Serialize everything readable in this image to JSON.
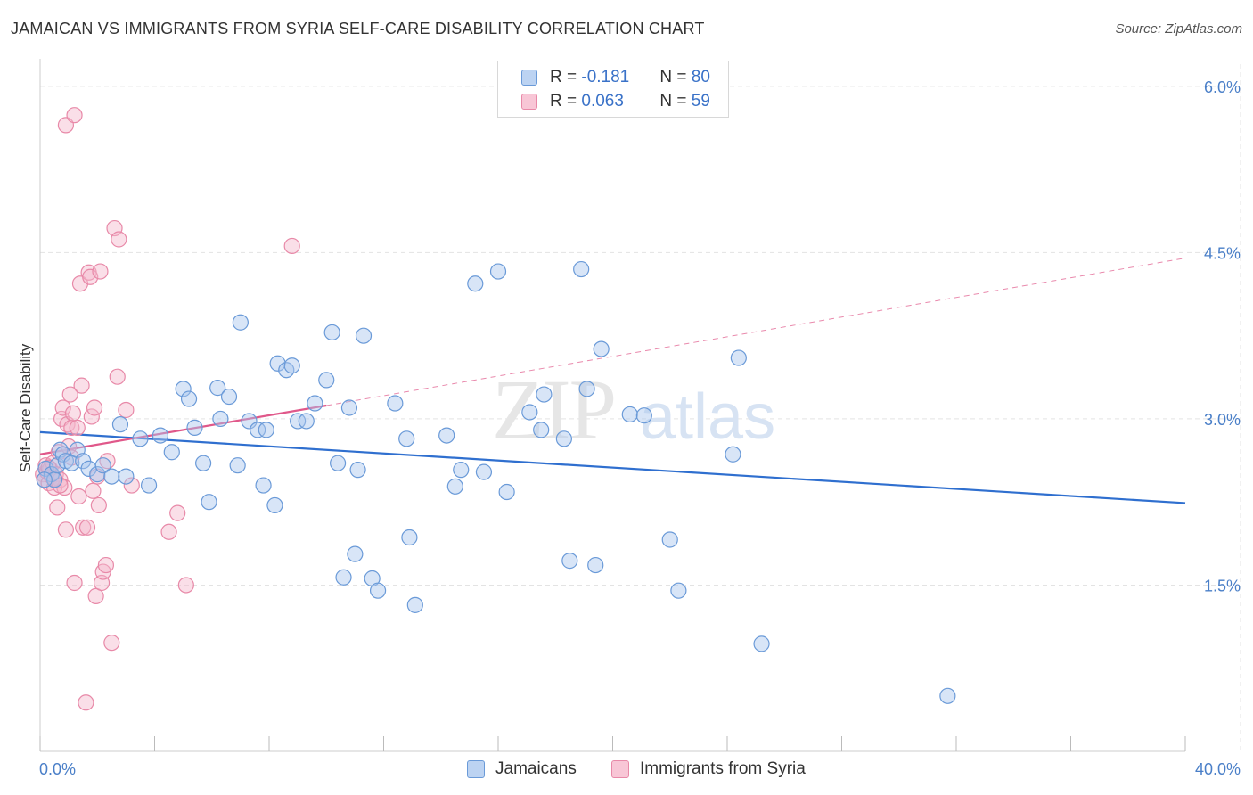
{
  "header": {
    "title": "JAMAICAN VS IMMIGRANTS FROM SYRIA SELF-CARE DISABILITY CORRELATION CHART",
    "source": "Source: ZipAtlas.com"
  },
  "watermark": {
    "zip": "ZIP",
    "atlas": "atlas"
  },
  "legend": {
    "rows": [
      {
        "r_label": "R = ",
        "r_value": "-0.181",
        "n_label": "N = ",
        "n_value": "80"
      },
      {
        "r_label": "R = ",
        "r_value": "0.063",
        "n_label": "N = ",
        "n_value": "59"
      }
    ]
  },
  "bottom_legend": {
    "jamaicans": "Jamaicans",
    "syria": "Immigrants from Syria"
  },
  "colors": {
    "blue_fill": "#a9c6ee",
    "blue_stroke": "#6a9ad8",
    "blue_line": "#2f6fcf",
    "pink_fill": "#f5b8cb",
    "pink_stroke": "#e889a8",
    "pink_line": "#e0588a",
    "grid": "#e3e3e3",
    "tick_text": "#4a7fc8"
  },
  "chart_data": {
    "type": "scatter",
    "title": "JAMAICAN VS IMMIGRANTS FROM SYRIA SELF-CARE DISABILITY CORRELATION CHART",
    "xlabel": "",
    "ylabel": "Self-Care Disability",
    "xlim": [
      0,
      40
    ],
    "ylim": [
      0,
      6.2
    ],
    "x_tick_labels": [
      "0.0%",
      "40.0%"
    ],
    "y_ticks": [
      1.5,
      3.0,
      4.5,
      6.0
    ],
    "y_tick_labels": [
      "1.5%",
      "3.0%",
      "4.5%",
      "6.0%"
    ],
    "grid": true,
    "series": [
      {
        "name": "Jamaicans",
        "r": -0.181,
        "n": 80,
        "trend": {
          "x": [
            0,
            40
          ],
          "y": [
            2.88,
            2.24
          ]
        },
        "points": [
          [
            0.2,
            2.55
          ],
          [
            0.4,
            2.5
          ],
          [
            0.5,
            2.45
          ],
          [
            0.6,
            2.58
          ],
          [
            0.7,
            2.72
          ],
          [
            0.8,
            2.68
          ],
          [
            0.9,
            2.62
          ],
          [
            1.1,
            2.6
          ],
          [
            1.3,
            2.72
          ],
          [
            1.5,
            2.62
          ],
          [
            1.7,
            2.55
          ],
          [
            2.0,
            2.5
          ],
          [
            2.2,
            2.58
          ],
          [
            2.5,
            2.48
          ],
          [
            2.8,
            2.95
          ],
          [
            3.0,
            2.48
          ],
          [
            3.5,
            2.82
          ],
          [
            3.8,
            2.4
          ],
          [
            4.2,
            2.85
          ],
          [
            4.6,
            2.7
          ],
          [
            5.0,
            3.27
          ],
          [
            5.2,
            3.18
          ],
          [
            5.4,
            2.92
          ],
          [
            5.7,
            2.6
          ],
          [
            5.9,
            2.25
          ],
          [
            6.2,
            3.28
          ],
          [
            6.3,
            3.0
          ],
          [
            6.6,
            3.2
          ],
          [
            6.9,
            2.58
          ],
          [
            7.0,
            3.87
          ],
          [
            7.3,
            2.98
          ],
          [
            7.6,
            2.9
          ],
          [
            7.8,
            2.4
          ],
          [
            7.9,
            2.9
          ],
          [
            8.2,
            2.22
          ],
          [
            8.3,
            3.5
          ],
          [
            8.6,
            3.44
          ],
          [
            8.8,
            3.48
          ],
          [
            9.0,
            2.98
          ],
          [
            9.3,
            2.98
          ],
          [
            9.6,
            3.14
          ],
          [
            10.0,
            3.35
          ],
          [
            10.2,
            3.78
          ],
          [
            10.4,
            2.6
          ],
          [
            10.6,
            1.57
          ],
          [
            10.8,
            3.1
          ],
          [
            11.0,
            1.78
          ],
          [
            11.1,
            2.54
          ],
          [
            11.3,
            3.75
          ],
          [
            11.6,
            1.56
          ],
          [
            11.8,
            1.45
          ],
          [
            12.4,
            3.14
          ],
          [
            12.8,
            2.82
          ],
          [
            12.9,
            1.93
          ],
          [
            13.1,
            1.32
          ],
          [
            14.2,
            2.85
          ],
          [
            14.5,
            2.39
          ],
          [
            14.7,
            2.54
          ],
          [
            15.2,
            4.22
          ],
          [
            15.5,
            2.52
          ],
          [
            16.0,
            4.33
          ],
          [
            16.3,
            2.34
          ],
          [
            17.1,
            3.06
          ],
          [
            17.5,
            2.9
          ],
          [
            17.6,
            3.22
          ],
          [
            18.3,
            2.82
          ],
          [
            18.5,
            1.72
          ],
          [
            18.9,
            4.35
          ],
          [
            19.1,
            3.27
          ],
          [
            19.4,
            1.68
          ],
          [
            19.6,
            3.63
          ],
          [
            20.6,
            3.04
          ],
          [
            21.1,
            3.03
          ],
          [
            22.0,
            1.91
          ],
          [
            22.3,
            1.45
          ],
          [
            24.2,
            2.68
          ],
          [
            24.4,
            3.55
          ],
          [
            25.2,
            0.97
          ],
          [
            31.7,
            0.5
          ],
          [
            0.15,
            2.45
          ]
        ]
      },
      {
        "name": "Immigrants from Syria",
        "r": 0.063,
        "n": 59,
        "trend": {
          "x": [
            0,
            10
          ],
          "y": [
            2.68,
            3.12
          ]
        },
        "trend_extension": {
          "x": [
            10,
            40
          ],
          "y": [
            3.12,
            4.45
          ]
        },
        "points": [
          [
            0.1,
            2.5
          ],
          [
            0.15,
            2.45
          ],
          [
            0.2,
            2.58
          ],
          [
            0.25,
            2.52
          ],
          [
            0.3,
            2.42
          ],
          [
            0.35,
            2.55
          ],
          [
            0.4,
            2.48
          ],
          [
            0.45,
            2.6
          ],
          [
            0.5,
            2.38
          ],
          [
            0.55,
            2.5
          ],
          [
            0.6,
            2.2
          ],
          [
            0.65,
            2.7
          ],
          [
            0.7,
            2.45
          ],
          [
            0.75,
            3.0
          ],
          [
            0.8,
            3.1
          ],
          [
            0.85,
            2.38
          ],
          [
            0.9,
            2.0
          ],
          [
            0.95,
            2.95
          ],
          [
            1.0,
            2.75
          ],
          [
            1.05,
            3.22
          ],
          [
            1.1,
            2.92
          ],
          [
            1.15,
            3.05
          ],
          [
            1.2,
            1.52
          ],
          [
            1.3,
            2.92
          ],
          [
            1.35,
            2.3
          ],
          [
            1.4,
            4.22
          ],
          [
            1.45,
            3.3
          ],
          [
            1.5,
            2.02
          ],
          [
            1.6,
            0.44
          ],
          [
            1.65,
            2.02
          ],
          [
            1.7,
            4.32
          ],
          [
            1.75,
            4.28
          ],
          [
            1.8,
            3.02
          ],
          [
            1.85,
            2.35
          ],
          [
            1.9,
            3.1
          ],
          [
            1.95,
            1.4
          ],
          [
            2.0,
            2.48
          ],
          [
            2.05,
            2.22
          ],
          [
            2.1,
            4.33
          ],
          [
            2.15,
            1.52
          ],
          [
            2.2,
            1.62
          ],
          [
            2.3,
            1.68
          ],
          [
            2.35,
            2.62
          ],
          [
            2.5,
            0.98
          ],
          [
            2.6,
            4.72
          ],
          [
            2.7,
            3.38
          ],
          [
            2.75,
            4.62
          ],
          [
            3.2,
            2.4
          ],
          [
            4.5,
            1.98
          ],
          [
            4.8,
            2.15
          ],
          [
            5.1,
            1.5
          ],
          [
            8.8,
            4.56
          ],
          [
            0.9,
            5.65
          ],
          [
            1.2,
            5.74
          ],
          [
            0.3,
            2.56
          ],
          [
            0.5,
            2.46
          ],
          [
            3.0,
            3.08
          ],
          [
            1.1,
            2.65
          ],
          [
            0.7,
            2.4
          ]
        ]
      }
    ]
  }
}
